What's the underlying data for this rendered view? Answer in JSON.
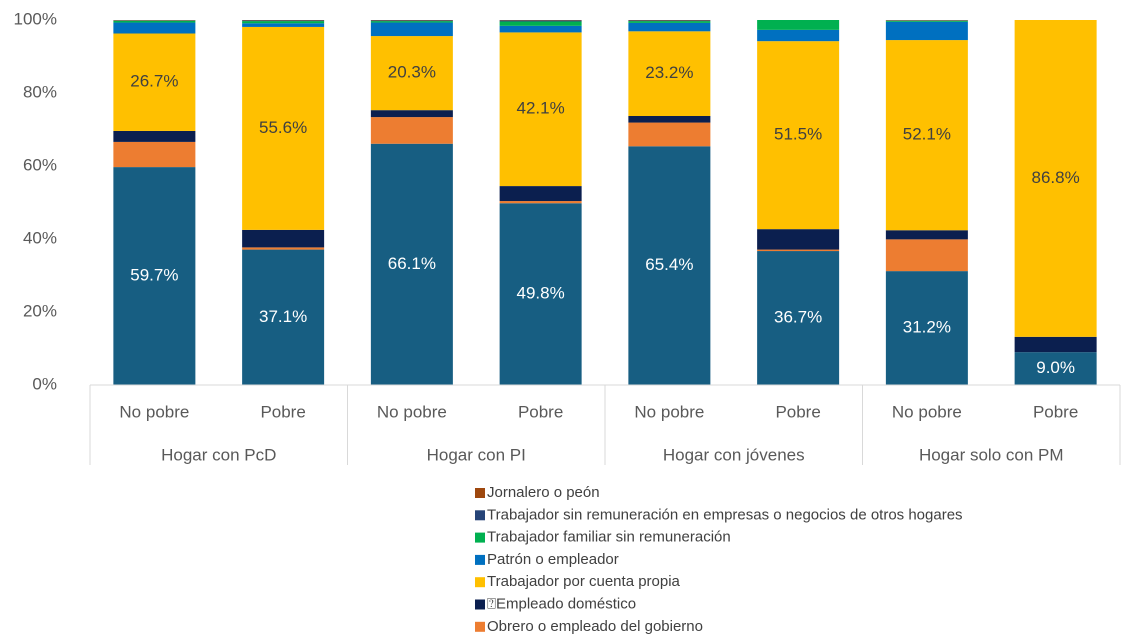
{
  "chart_data": {
    "type": "stacked_bar",
    "categories": [
      "No pobre",
      "Pobre",
      "No pobre",
      "Pobre",
      "No pobre",
      "Pobre",
      "No pobre",
      "Pobre"
    ],
    "groups": [
      "Hogar con PcD",
      "Hogar con PI",
      "Hogar con jóvenes",
      "Hogar solo con PM"
    ],
    "ylim": [
      0,
      100
    ],
    "yticks": [
      {
        "value": 0,
        "label": "0%"
      },
      {
        "value": 20,
        "label": "20%"
      },
      {
        "value": 40,
        "label": "40%"
      },
      {
        "value": 60,
        "label": "60%"
      },
      {
        "value": 80,
        "label": "80%"
      },
      {
        "value": 100,
        "label": "100%"
      }
    ],
    "grid": false,
    "legend": "bottom",
    "series": [
      {
        "color": "#175E82",
        "label_color": "#ffffff",
        "values": [
          59.7,
          37.1,
          66.1,
          49.8,
          65.4,
          36.7,
          31.2,
          9.0
        ],
        "value_labels": [
          "59.7%",
          "37.1%",
          "66.1%",
          "49.8%",
          "65.4%",
          "36.7%",
          "31.2%",
          "9.0%"
        ]
      },
      {
        "name": "Obrero o empleado del gobierno",
        "color": "#ED7D31",
        "values": [
          6.9,
          0.6,
          7.3,
          0.6,
          6.5,
          0.4,
          8.7,
          0
        ]
      },
      {
        "name": "⍰Empleado doméstico",
        "color": "#0B1F4F",
        "values": [
          3.0,
          4.8,
          1.9,
          4.1,
          1.8,
          5.6,
          2.5,
          4.2
        ]
      },
      {
        "name": "Trabajador por cuenta propia",
        "color": "#FFC000",
        "label_color": "#404040",
        "values": [
          26.7,
          55.6,
          20.3,
          42.1,
          23.2,
          51.5,
          52.1,
          86.8
        ],
        "value_labels": [
          "26.7%",
          "55.6%",
          "20.3%",
          "42.1%",
          "23.2%",
          "51.5%",
          "52.1%",
          "86.8%"
        ]
      },
      {
        "name": "Patrón o empleador",
        "color": "#0070C0",
        "values": [
          3.0,
          1.0,
          3.7,
          1.8,
          2.3,
          3.1,
          5.0,
          0
        ]
      },
      {
        "name": "Trabajador familiar sin remuneración",
        "color": "#00B050",
        "values": [
          0.5,
          0.6,
          0.4,
          1.2,
          0.5,
          2.7,
          0.3,
          0
        ]
      },
      {
        "name": "Trabajador sin remuneración en empresas o negocios de otros hogares",
        "color": "#264478",
        "values": [
          0.1,
          0.2,
          0.2,
          0.3,
          0.2,
          0,
          0.1,
          0
        ]
      },
      {
        "name": "Jornalero o peón",
        "color": "#9E480E",
        "values": [
          0.1,
          0.1,
          0.1,
          0.1,
          0.1,
          0,
          0.1,
          0
        ]
      }
    ]
  }
}
